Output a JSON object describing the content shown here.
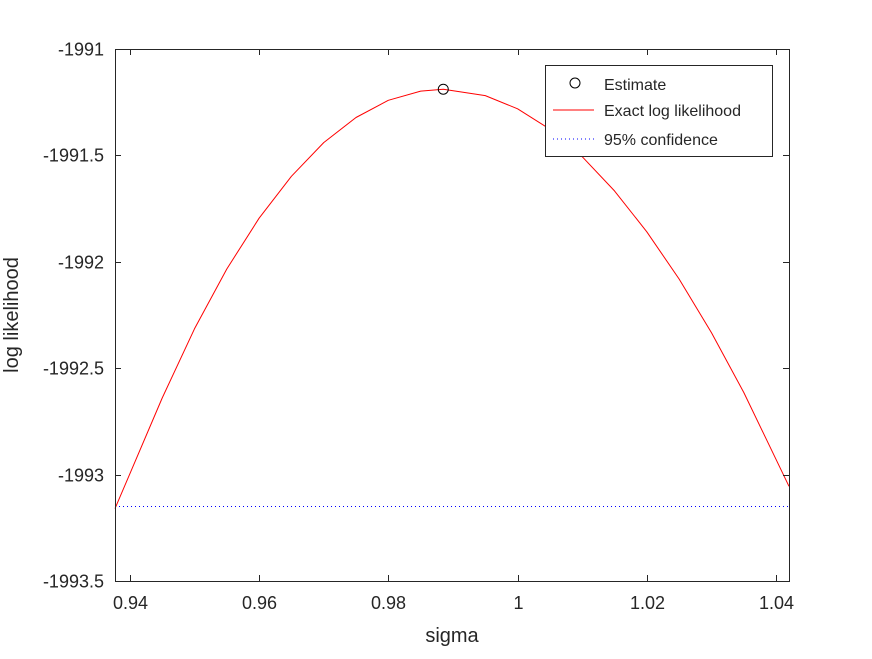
{
  "chart_data": {
    "type": "line",
    "title": "",
    "xlabel": "sigma",
    "ylabel": "log likelihood",
    "xlim": [
      0.9377,
      1.042
    ],
    "ylim": [
      -1993.5,
      -1991
    ],
    "xticks": [
      0.94,
      0.96,
      0.98,
      1.0,
      1.02,
      1.04
    ],
    "xtick_labels": [
      "0.94",
      "0.96",
      "0.98",
      "1",
      "1.02",
      "1.04"
    ],
    "yticks": [
      -1991,
      -1991.5,
      -1992,
      -1992.5,
      -1993,
      -1993.5
    ],
    "ytick_labels": [
      "-1991",
      "-1991.5",
      "-1992",
      "-1992.5",
      "-1993",
      "-1993.5"
    ],
    "grid": false,
    "legend_position": "top-right",
    "series": [
      {
        "name": "Estimate",
        "kind": "marker",
        "color": "#000000",
        "x": [
          0.9885
        ],
        "y": [
          -1991.189
        ]
      },
      {
        "name": "Exact log likelihood",
        "kind": "line",
        "color": "#ff0000",
        "x": [
          0.9377,
          0.945,
          0.95,
          0.955,
          0.96,
          0.965,
          0.97,
          0.975,
          0.98,
          0.985,
          0.9885,
          0.995,
          1.0,
          1.005,
          1.01,
          1.015,
          1.02,
          1.025,
          1.03,
          1.035,
          1.042
        ],
        "y": [
          -1993.16,
          -1992.64,
          -1992.315,
          -1992.034,
          -1991.795,
          -1991.598,
          -1991.44,
          -1991.322,
          -1991.241,
          -1991.198,
          -1991.189,
          -1991.219,
          -1991.281,
          -1991.377,
          -1991.506,
          -1991.667,
          -1991.859,
          -1992.081,
          -1992.333,
          -1992.614,
          -1993.055
        ]
      },
      {
        "name": "95% confidence",
        "kind": "dotted",
        "color": "#0000ff",
        "x": [
          0.9377,
          1.042
        ],
        "y": [
          -1993.15,
          -1993.15
        ]
      }
    ]
  }
}
